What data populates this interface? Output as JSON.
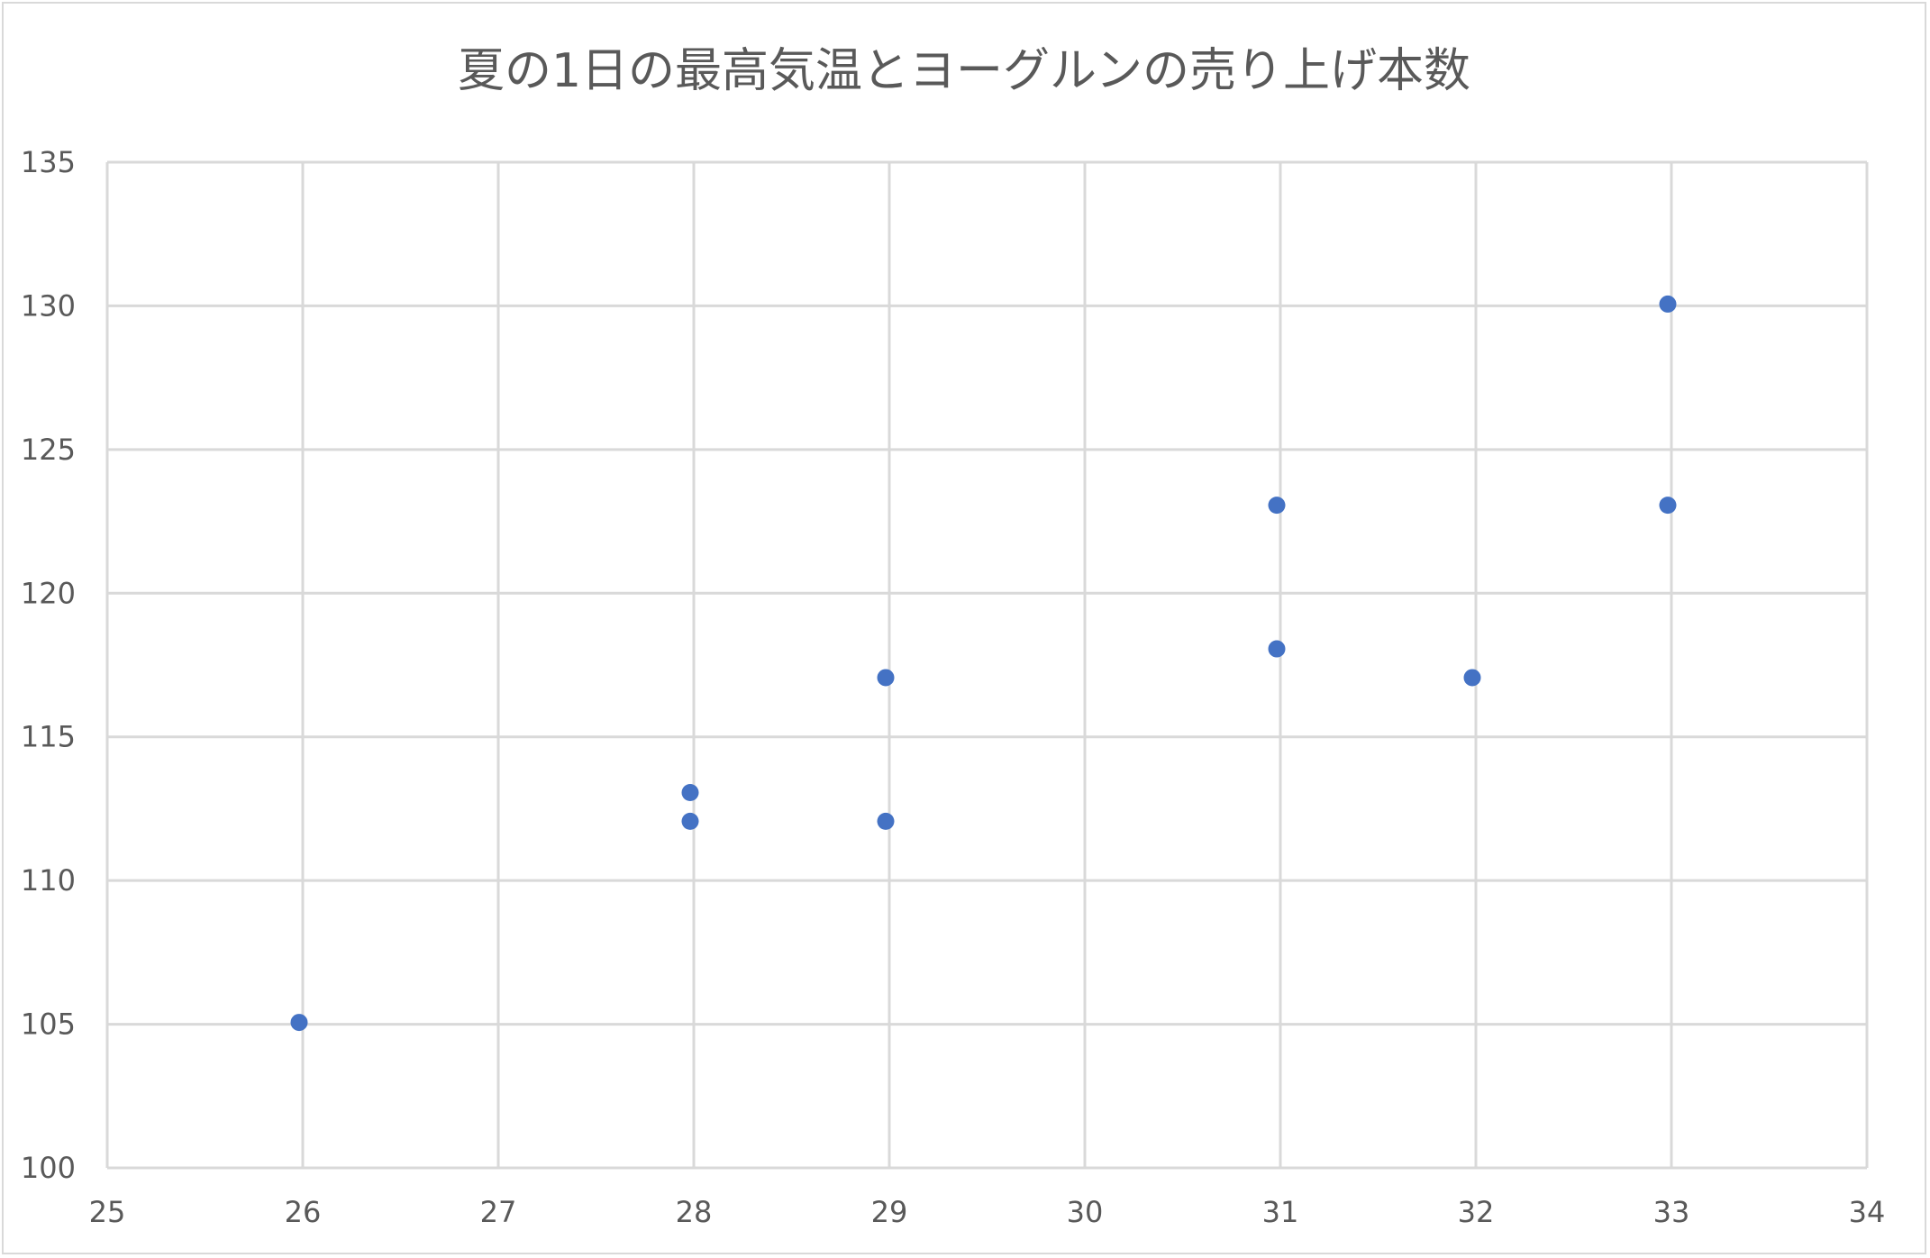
{
  "chart_data": {
    "type": "scatter",
    "title": "夏の1日の最高気温とヨーグルンの売り上げ本数",
    "xlabel": "",
    "ylabel": "",
    "xlim": [
      25,
      34
    ],
    "ylim": [
      100,
      135
    ],
    "xticks": [
      25,
      26,
      27,
      28,
      29,
      30,
      31,
      32,
      33,
      34
    ],
    "yticks": [
      100,
      105,
      110,
      115,
      120,
      125,
      130,
      135
    ],
    "grid": true,
    "legend": "none",
    "marker_color": "#4472C4",
    "points": [
      {
        "x": 26,
        "y": 105
      },
      {
        "x": 28,
        "y": 113
      },
      {
        "x": 28,
        "y": 112
      },
      {
        "x": 29,
        "y": 117
      },
      {
        "x": 29,
        "y": 112
      },
      {
        "x": 31,
        "y": 123
      },
      {
        "x": 31,
        "y": 118
      },
      {
        "x": 32,
        "y": 117
      },
      {
        "x": 33,
        "y": 130
      },
      {
        "x": 33,
        "y": 123
      }
    ]
  }
}
